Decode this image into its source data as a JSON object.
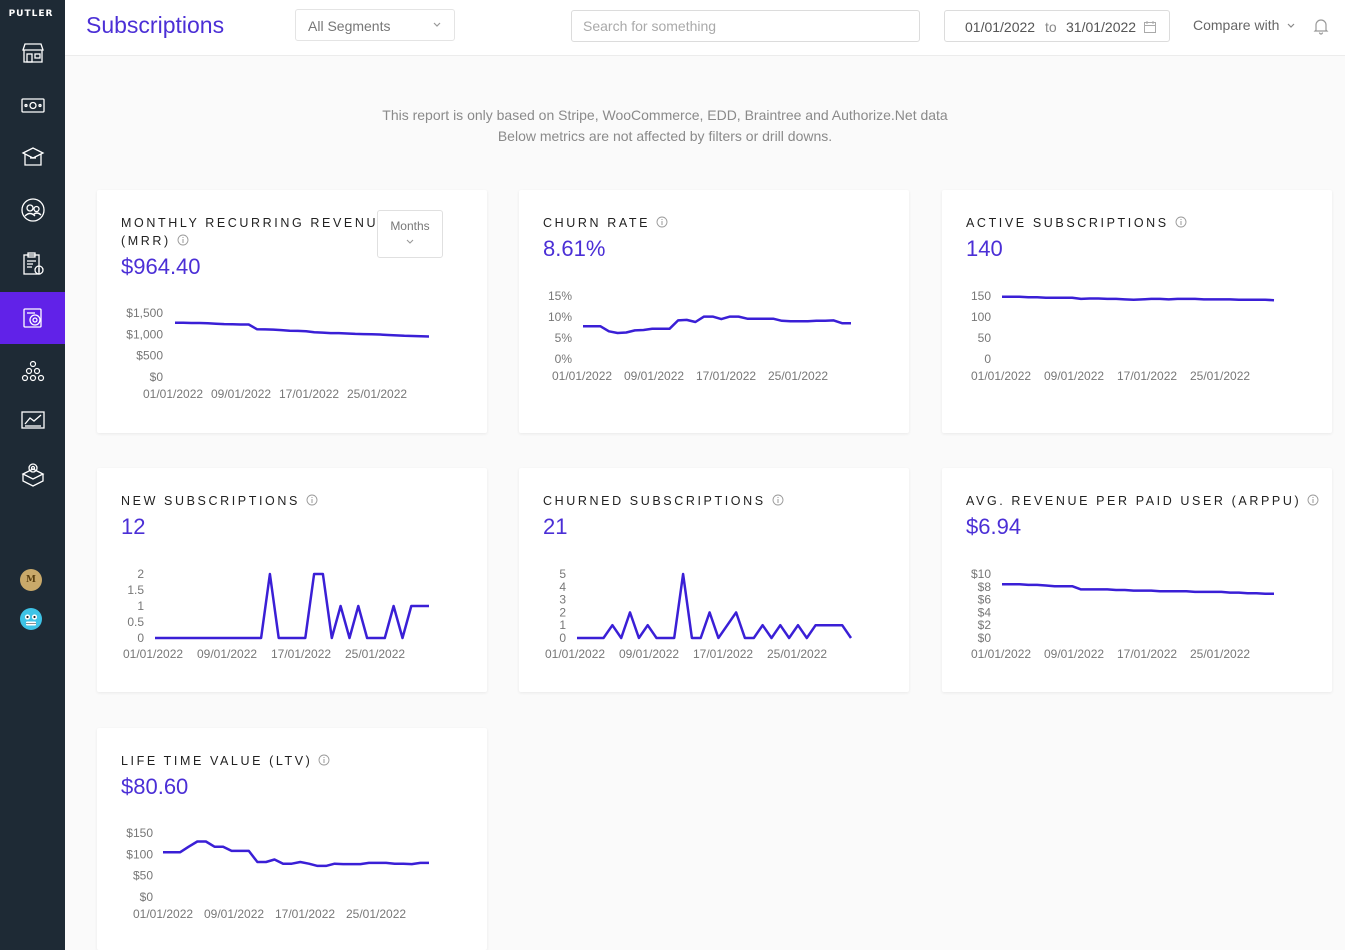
{
  "brand": "PUTLER",
  "sidebar": {
    "items": [
      {
        "icon": "store-icon",
        "label": "Home"
      },
      {
        "icon": "money-icon",
        "label": "Sales"
      },
      {
        "icon": "box-icon",
        "label": "Products"
      },
      {
        "icon": "customers-icon",
        "label": "Customers"
      },
      {
        "icon": "report-icon",
        "label": "Transactions"
      },
      {
        "icon": "subscriptions-icon",
        "label": "Subscriptions",
        "active": true
      },
      {
        "icon": "audience-icon",
        "label": "Audience"
      },
      {
        "icon": "insights-icon",
        "label": "Insights"
      },
      {
        "icon": "apps-icon",
        "label": "Apps"
      }
    ],
    "avatars": [
      {
        "letter": "M",
        "color": "#c9a96a"
      },
      {
        "letter": "",
        "color": "#3ec3e6"
      }
    ]
  },
  "header": {
    "title": "Subscriptions",
    "segments_label": "All Segments",
    "search_placeholder": "Search for something",
    "date_start": "01/01/2022",
    "date_to": "to",
    "date_end": "31/01/2022",
    "compare_label": "Compare with"
  },
  "notice": {
    "line1": "This report is only based on Stripe, WooCommerce, EDD, Braintree and Authorize.Net data",
    "line2": "Below metrics are not affected by filters or drill downs."
  },
  "colors": {
    "accent": "#4b2fd6",
    "line": "#3a1fd6",
    "sidebar": "#1e2a35",
    "active": "#6122e8"
  },
  "cards": {
    "mrr": {
      "title_line1": "MONTHLY RECURRING REVENUE",
      "title_line2": "(MRR)",
      "value": "$964.40",
      "months_label": "Months"
    },
    "churn_rate": {
      "title": "CHURN RATE",
      "value": "8.61%"
    },
    "active_subs": {
      "title": "ACTIVE SUBSCRIPTIONS",
      "value": "140"
    },
    "new_subs": {
      "title": "NEW SUBSCRIPTIONS",
      "value": "12"
    },
    "churned_subs": {
      "title": "CHURNED SUBSCRIPTIONS",
      "value": "21"
    },
    "arppu": {
      "title": "AVG. REVENUE PER PAID USER (ARPPU)",
      "value": "$6.94"
    },
    "ltv": {
      "title": "LIFE TIME VALUE (LTV)",
      "value": "$80.60"
    }
  },
  "chart_data": [
    {
      "id": "mrr",
      "type": "line",
      "x_ticks": [
        "01/01/2022",
        "09/01/2022",
        "17/01/2022",
        "25/01/2022"
      ],
      "y_ticks": [
        "$0",
        "$500",
        "$1,000",
        "$1,500"
      ],
      "ylim": [
        0,
        1500
      ],
      "series": [
        {
          "values": [
            1270,
            1270,
            1265,
            1265,
            1260,
            1250,
            1240,
            1235,
            1230,
            1230,
            1120,
            1115,
            1110,
            1100,
            1085,
            1080,
            1070,
            1050,
            1040,
            1030,
            1030,
            1020,
            1010,
            1005,
            1000,
            995,
            985,
            975,
            965,
            960,
            955,
            950
          ]
        }
      ]
    },
    {
      "id": "churn_rate",
      "type": "line",
      "x_ticks": [
        "01/01/2022",
        "09/01/2022",
        "17/01/2022",
        "25/01/2022"
      ],
      "y_ticks": [
        "0%",
        "5%",
        "10%",
        "15%"
      ],
      "ylim": [
        0,
        15
      ],
      "series": [
        {
          "values": [
            7.8,
            7.8,
            7.8,
            6.6,
            6.2,
            6.3,
            6.8,
            6.9,
            7.2,
            7.2,
            7.2,
            9.2,
            9.3,
            8.8,
            10.1,
            10.1,
            9.5,
            10.1,
            10.1,
            9.6,
            9.6,
            9.6,
            9.6,
            9.1,
            9.0,
            9.0,
            9.0,
            9.1,
            9.1,
            9.2,
            8.5,
            8.5
          ]
        }
      ]
    },
    {
      "id": "active_subs",
      "type": "line",
      "x_ticks": [
        "01/01/2022",
        "09/01/2022",
        "17/01/2022",
        "25/01/2022"
      ],
      "y_ticks": [
        "0",
        "50",
        "100",
        "150"
      ],
      "ylim": [
        0,
        150
      ],
      "series": [
        {
          "values": [
            148,
            148,
            148,
            147,
            147,
            146,
            146,
            146,
            146,
            143,
            144,
            144,
            143,
            143,
            142,
            141,
            142,
            143,
            143,
            142,
            143,
            143,
            143,
            142,
            142,
            142,
            142,
            141,
            141,
            141,
            141,
            140
          ]
        }
      ]
    },
    {
      "id": "new_subs",
      "type": "line",
      "x_ticks": [
        "01/01/2022",
        "09/01/2022",
        "17/01/2022",
        "25/01/2022"
      ],
      "y_ticks": [
        "0",
        "0.5",
        "1",
        "1.5",
        "2"
      ],
      "ylim": [
        0,
        2
      ],
      "series": [
        {
          "values": [
            0,
            0,
            0,
            0,
            0,
            0,
            0,
            0,
            0,
            0,
            0,
            0,
            0,
            2,
            0,
            0,
            0,
            0,
            2,
            2,
            0,
            1,
            0,
            1,
            0,
            0,
            0,
            1,
            0,
            1,
            1,
            1
          ]
        }
      ]
    },
    {
      "id": "churned_subs",
      "type": "line",
      "x_ticks": [
        "01/01/2022",
        "09/01/2022",
        "17/01/2022",
        "25/01/2022"
      ],
      "y_ticks": [
        "0",
        "1",
        "2",
        "3",
        "4",
        "5"
      ],
      "ylim": [
        0,
        5
      ],
      "series": [
        {
          "values": [
            0,
            0,
            0,
            0,
            1,
            0,
            2,
            0,
            1,
            0,
            0,
            0,
            5,
            0,
            0,
            2,
            0,
            1,
            2,
            0,
            0,
            1,
            0,
            1,
            0,
            1,
            0,
            1,
            1,
            1,
            1,
            0
          ]
        }
      ]
    },
    {
      "id": "arppu",
      "type": "line",
      "x_ticks": [
        "01/01/2022",
        "09/01/2022",
        "17/01/2022",
        "25/01/2022"
      ],
      "y_ticks": [
        "$0",
        "$2",
        "$4",
        "$6",
        "$8",
        "$10"
      ],
      "ylim": [
        0,
        10
      ],
      "series": [
        {
          "values": [
            8.4,
            8.4,
            8.4,
            8.3,
            8.3,
            8.2,
            8.1,
            8.1,
            8.1,
            7.6,
            7.6,
            7.6,
            7.6,
            7.5,
            7.5,
            7.4,
            7.4,
            7.4,
            7.3,
            7.3,
            7.3,
            7.3,
            7.2,
            7.2,
            7.2,
            7.2,
            7.1,
            7.1,
            7.0,
            7.0,
            6.9,
            6.9
          ]
        }
      ]
    },
    {
      "id": "ltv",
      "type": "line",
      "x_ticks": [
        "01/01/2022",
        "09/01/2022",
        "17/01/2022",
        "25/01/2022"
      ],
      "y_ticks": [
        "$0",
        "$50",
        "$100",
        "$150"
      ],
      "ylim": [
        0,
        150
      ],
      "series": [
        {
          "values": [
            105,
            105,
            105,
            118,
            130,
            130,
            118,
            118,
            108,
            108,
            108,
            82,
            82,
            88,
            78,
            78,
            82,
            78,
            73,
            73,
            78,
            77,
            77,
            77,
            80,
            80,
            80,
            78,
            78,
            77,
            80,
            80
          ]
        }
      ]
    }
  ]
}
